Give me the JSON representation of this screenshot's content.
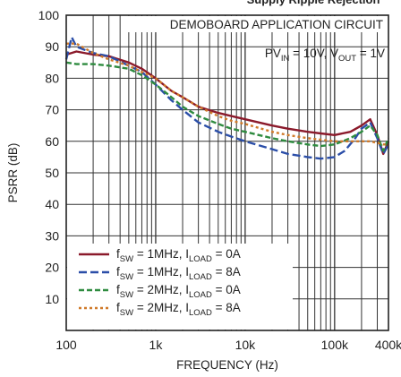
{
  "header": {
    "clipped_title": "Supply Ripple Rejection"
  },
  "chart_data": {
    "type": "line",
    "title": "",
    "annotations": {
      "box_title": "DEMOBOARD APPLICATION CIRCUIT",
      "conditions": {
        "pvin_label": "PV",
        "pvin_sub": "IN",
        "pvin_value": " = 10V, V",
        "vout_sub": "OUT",
        "vout_value": " = 1V"
      }
    },
    "xlabel": "FREQUENCY (Hz)",
    "ylabel": "PSRR (dB)",
    "x_scale": "log",
    "xlim": [
      100,
      400000
    ],
    "ylim": [
      0,
      100
    ],
    "grid": true,
    "legend_position": "bottom-left",
    "x_ticks": [
      {
        "value": 100,
        "label": "100"
      },
      {
        "value": 1000,
        "label": "1k"
      },
      {
        "value": 10000,
        "label": "10k"
      },
      {
        "value": 100000,
        "label": "100k"
      },
      {
        "value": 400000,
        "label": "400k"
      }
    ],
    "y_ticks": [
      {
        "value": 10,
        "label": "10"
      },
      {
        "value": 20,
        "label": "20"
      },
      {
        "value": 30,
        "label": "30"
      },
      {
        "value": 40,
        "label": "40"
      },
      {
        "value": 50,
        "label": "50"
      },
      {
        "value": 60,
        "label": "60"
      },
      {
        "value": 70,
        "label": "70"
      },
      {
        "value": 80,
        "label": "80"
      },
      {
        "value": 90,
        "label": "90"
      },
      {
        "value": 100,
        "label": "100"
      }
    ],
    "series": [
      {
        "legend": {
          "f": "f",
          "fsub": "SW",
          "fval": " = 1MHz, I",
          "isub": "LOAD",
          "ival": " = 0A"
        },
        "color": "#8b1a2b",
        "dash": "none",
        "x": [
          100,
          130,
          200,
          300,
          500,
          700,
          1000,
          1500,
          2000,
          3000,
          5000,
          7000,
          10000,
          20000,
          30000,
          50000,
          70000,
          100000,
          150000,
          200000,
          250000,
          300000,
          350000,
          400000
        ],
        "y": [
          87.5,
          88.5,
          87.5,
          87,
          85,
          83,
          80,
          76,
          74,
          71,
          69,
          68,
          67,
          65,
          64,
          63,
          62.5,
          62,
          63,
          65,
          67,
          62,
          56,
          60
        ]
      },
      {
        "legend": {
          "f": "f",
          "fsub": "SW",
          "fval": " = 1MHz, I",
          "isub": "LOAD",
          "ival": " = 8A"
        },
        "color": "#2b4ea8",
        "dash": "9,4",
        "x": [
          100,
          115,
          130,
          200,
          300,
          500,
          700,
          1000,
          1500,
          2000,
          3000,
          5000,
          7000,
          10000,
          20000,
          30000,
          50000,
          70000,
          100000,
          130000,
          170000,
          200000,
          250000,
          300000,
          350000,
          400000
        ],
        "y": [
          86,
          93,
          90,
          88,
          87,
          84,
          82,
          78,
          73,
          70,
          66,
          63,
          61.5,
          60,
          57.5,
          56,
          55,
          54.5,
          55,
          57,
          61,
          64,
          66,
          61,
          56,
          59
        ]
      },
      {
        "legend": {
          "f": "f",
          "fsub": "SW",
          "fval": " = 2MHz, I",
          "isub": "LOAD",
          "ival": " = 0A"
        },
        "color": "#2e8b3f",
        "dash": "6,3",
        "x": [
          100,
          130,
          200,
          300,
          500,
          700,
          1000,
          1500,
          2000,
          3000,
          5000,
          7000,
          10000,
          20000,
          30000,
          50000,
          70000,
          100000,
          150000,
          200000,
          250000,
          300000,
          350000,
          400000
        ],
        "y": [
          85,
          84.5,
          84.5,
          84,
          83,
          81,
          78,
          74,
          71,
          68,
          65.5,
          64,
          63,
          61,
          60,
          59,
          58.5,
          59,
          61,
          63,
          65,
          62,
          57,
          61
        ]
      },
      {
        "legend": {
          "f": "f",
          "fsub": "SW",
          "fval": " = 2MHz, I",
          "isub": "LOAD",
          "ival": " = 8A"
        },
        "color": "#d07a2a",
        "dash": "3,3",
        "x": [
          100,
          130,
          200,
          300,
          500,
          700,
          1000,
          1500,
          2000,
          3000,
          5000,
          7000,
          10000,
          20000,
          30000,
          50000,
          70000,
          100000,
          150000,
          200000,
          250000,
          300000,
          350000,
          400000
        ],
        "y": [
          91,
          91,
          88,
          86,
          84,
          82,
          80,
          76,
          74,
          71,
          68,
          66.5,
          65.5,
          63,
          62,
          61,
          60.5,
          60,
          60,
          60,
          60,
          59.5,
          59,
          59
        ]
      }
    ]
  }
}
